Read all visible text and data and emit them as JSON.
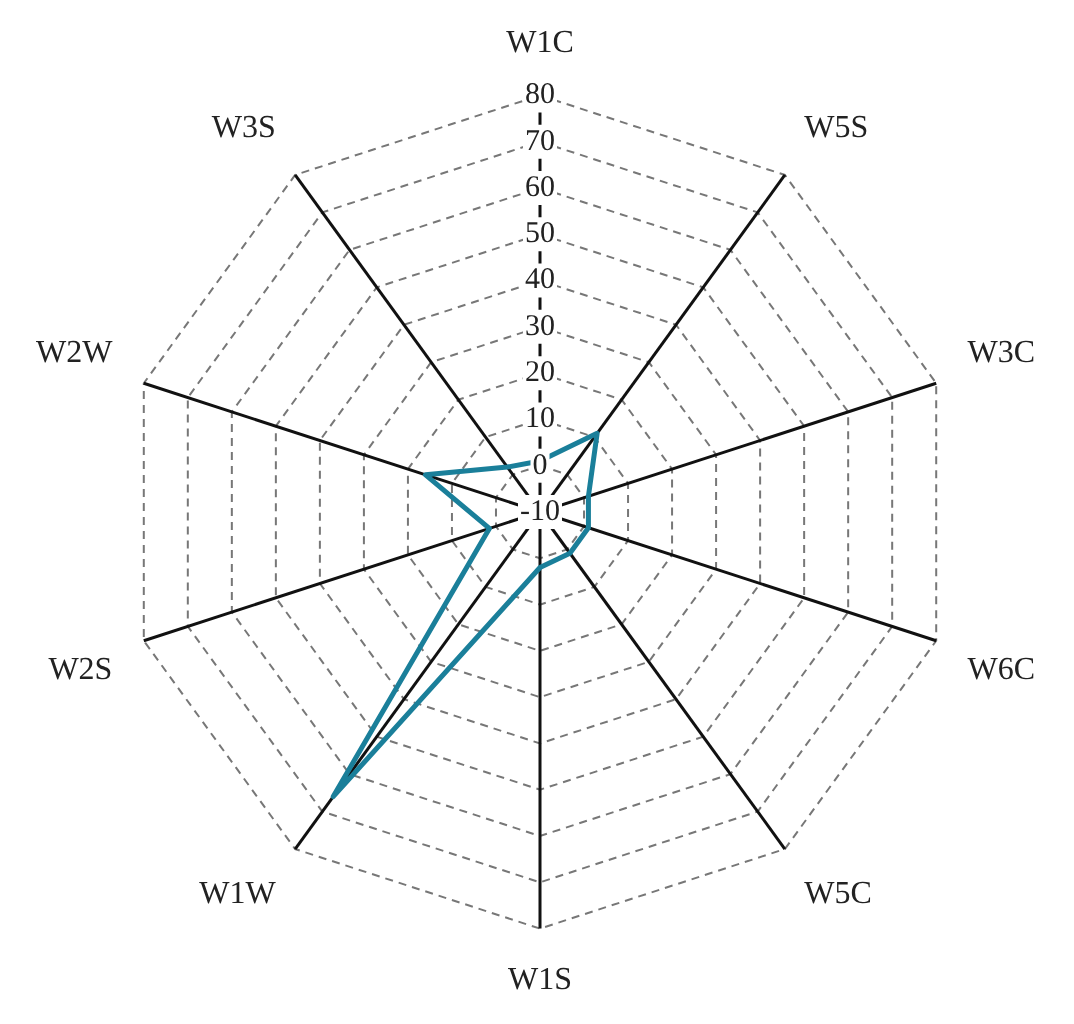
{
  "chart_data": {
    "type": "radar",
    "categories": [
      "W1C",
      "W5S",
      "W3C",
      "W6C",
      "W5C",
      "W1S",
      "W1W",
      "W2S",
      "W2W",
      "W3S"
    ],
    "series": [
      {
        "color": "#1a7f9a",
        "values": [
          1,
          11,
          1,
          1,
          1,
          2,
          66,
          1.5,
          16,
          2
        ]
      }
    ],
    "ylim": [
      -10,
      80
    ],
    "yticks": [
      -10,
      0,
      10,
      20,
      30,
      40,
      50,
      60,
      70,
      80
    ],
    "grid": true,
    "legend": false,
    "marker": "none",
    "line_style": "solid"
  }
}
